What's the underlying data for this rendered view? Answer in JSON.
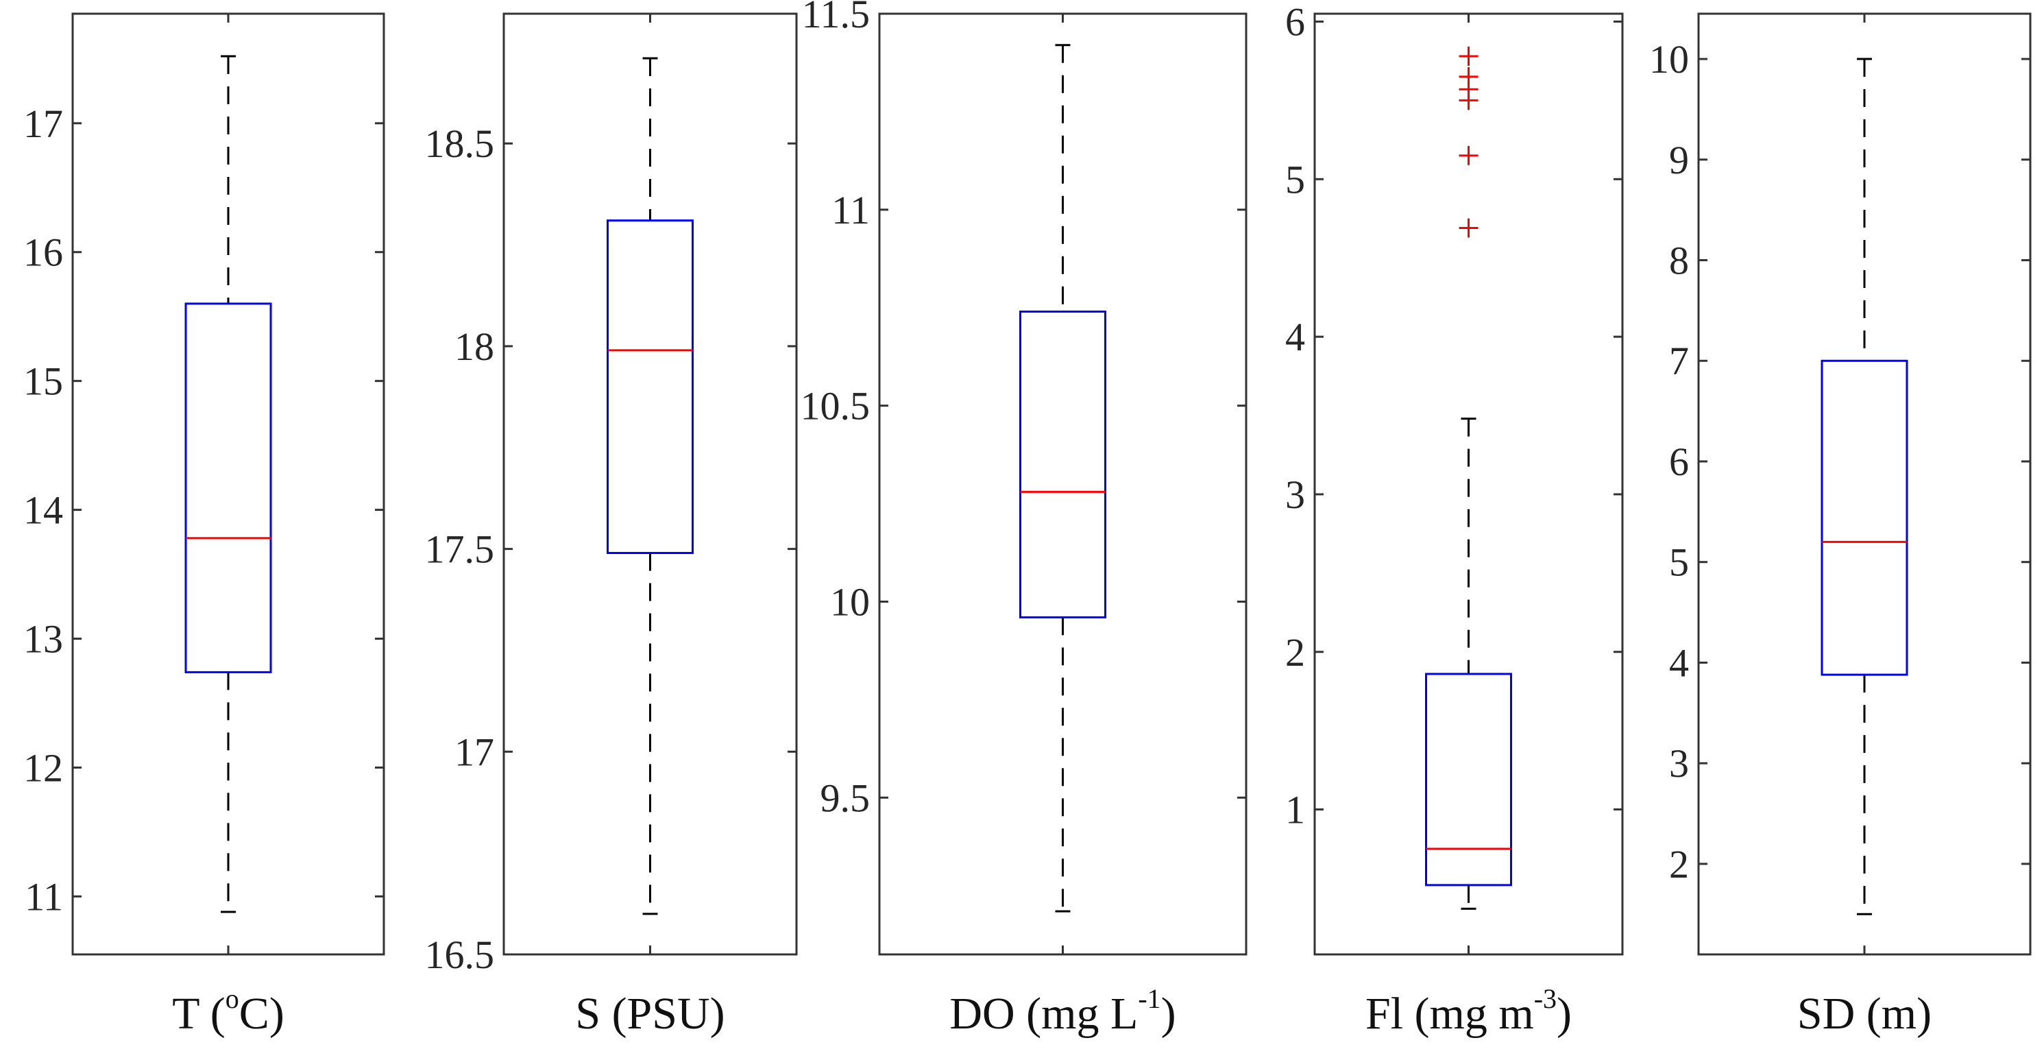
{
  "chart_data": [
    {
      "type": "box",
      "xlabel_parts": [
        {
          "text": "T (",
          "sup": false
        },
        {
          "text": "o",
          "sup": true
        },
        {
          "text": "C)",
          "sup": false
        }
      ],
      "ylim": [
        10.55,
        17.85
      ],
      "yticks": [
        11,
        12,
        13,
        14,
        15,
        16,
        17
      ],
      "ytick_labels": [
        "11",
        "12",
        "13",
        "14",
        "15",
        "16",
        "17"
      ],
      "box": {
        "whisker_low": 10.88,
        "q1": 12.74,
        "median": 13.78,
        "q3": 15.6,
        "whisker_high": 17.52
      },
      "outliers": []
    },
    {
      "type": "box",
      "xlabel_parts": [
        {
          "text": "S (PSU)",
          "sup": false
        }
      ],
      "ylim": [
        16.5,
        18.82
      ],
      "yticks": [
        16.5,
        17,
        17.5,
        18,
        18.5
      ],
      "ytick_labels": [
        "16.5",
        "17",
        "17.5",
        "18",
        "18.5"
      ],
      "box": {
        "whisker_low": 16.6,
        "q1": 17.49,
        "median": 17.99,
        "q3": 18.31,
        "whisker_high": 18.71
      },
      "outliers": []
    },
    {
      "type": "box",
      "xlabel_parts": [
        {
          "text": "DO (mg L",
          "sup": false
        },
        {
          "text": "-1",
          "sup": true
        },
        {
          "text": ")",
          "sup": false
        }
      ],
      "ylim": [
        9.1,
        11.5
      ],
      "yticks": [
        9.5,
        10,
        10.5,
        11,
        11.5
      ],
      "ytick_labels": [
        "9.5",
        "10",
        "10.5",
        "11",
        "11.5"
      ],
      "box": {
        "whisker_low": 9.21,
        "q1": 9.96,
        "median": 10.28,
        "q3": 10.74,
        "whisker_high": 11.42
      },
      "outliers": []
    },
    {
      "type": "box",
      "xlabel_parts": [
        {
          "text": "Fl (mg m",
          "sup": false
        },
        {
          "text": "-3",
          "sup": true
        },
        {
          "text": ")",
          "sup": false
        }
      ],
      "ylim": [
        0.08,
        6.05
      ],
      "yticks": [
        1,
        2,
        3,
        4,
        5,
        6
      ],
      "ytick_labels": [
        "1",
        "2",
        "3",
        "4",
        "5",
        "6"
      ],
      "box": {
        "whisker_low": 0.37,
        "q1": 0.52,
        "median": 0.75,
        "q3": 1.86,
        "whisker_high": 3.48
      },
      "outliers": [
        4.69,
        5.15,
        5.5,
        5.57,
        5.65,
        5.78
      ]
    },
    {
      "type": "box",
      "xlabel_parts": [
        {
          "text": "SD (m)",
          "sup": false
        }
      ],
      "ylim": [
        1.1,
        10.45
      ],
      "yticks": [
        2,
        3,
        4,
        5,
        6,
        7,
        8,
        9,
        10
      ],
      "ytick_labels": [
        "2",
        "3",
        "4",
        "5",
        "6",
        "7",
        "8",
        "9",
        "10"
      ],
      "box": {
        "whisker_low": 1.5,
        "q1": 3.88,
        "median": 5.2,
        "q3": 7.0,
        "whisker_high": 10.0
      },
      "outliers": []
    }
  ],
  "colors": {
    "box": "#0000ff",
    "median": "#ff0000",
    "outlier": "#ff0000",
    "whisker": "#000000",
    "axis": "#333333"
  }
}
